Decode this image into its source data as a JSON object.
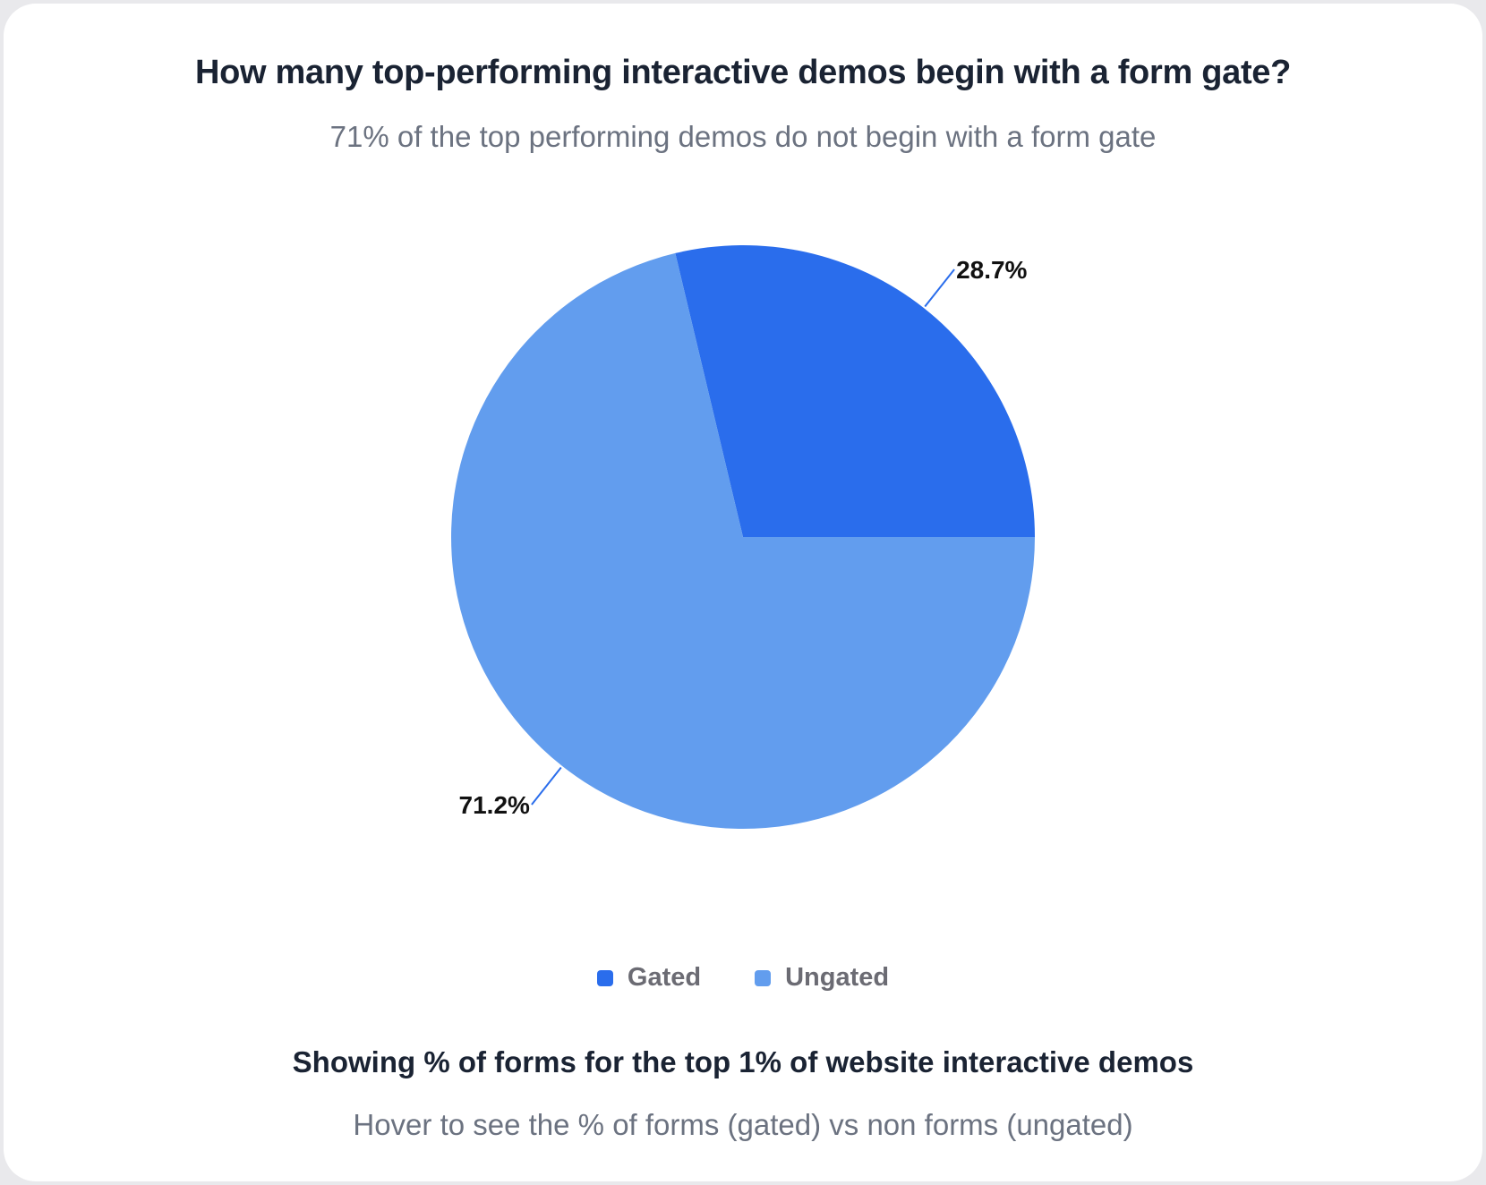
{
  "chart_data": {
    "type": "pie",
    "title": "How many top-performing interactive demos begin with a form gate?",
    "subtitle": "71% of the top performing demos do not begin with a form gate",
    "slices": [
      {
        "name": "Gated",
        "value": 28.7,
        "label": "28.7%",
        "color": "#2a6dec"
      },
      {
        "name": "Ungated",
        "value": 71.2,
        "label": "71.2%",
        "color": "#629dee"
      }
    ],
    "legend_position": "bottom"
  },
  "footer": {
    "title": "Showing % of forms for the top 1% of website interactive demos",
    "subtitle": "Hover to see the % of forms (gated) vs non forms (ungated)"
  },
  "colors": {
    "gated": "#2a6dec",
    "ungated": "#629dee",
    "leader_line": "#2a6dec"
  }
}
